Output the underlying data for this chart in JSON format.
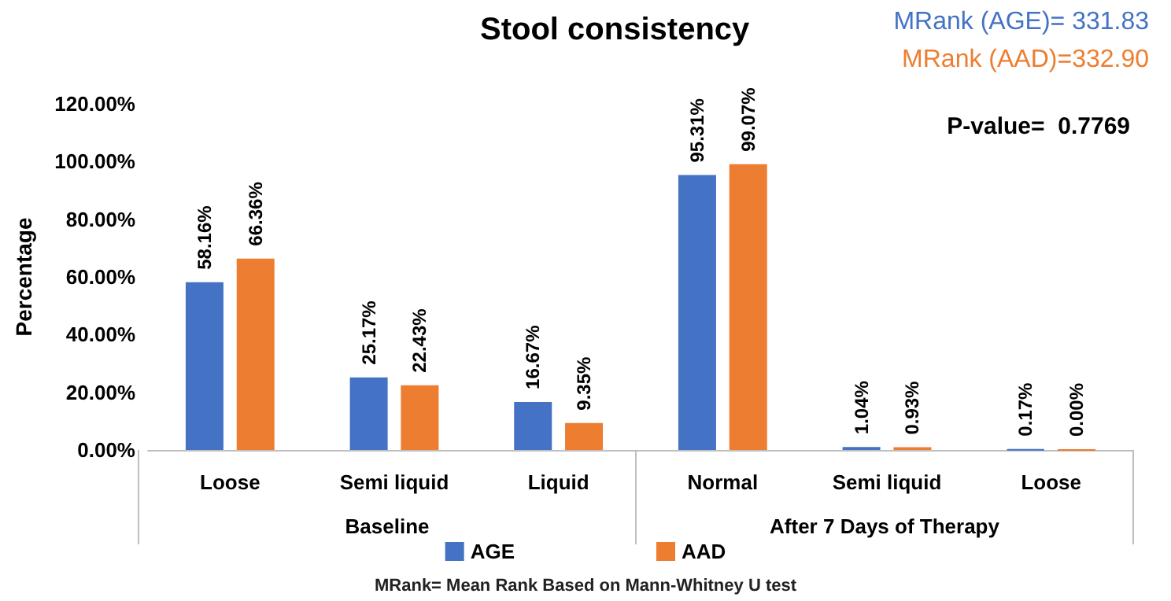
{
  "chart_data": {
    "type": "bar",
    "title": "Stool consistency",
    "ylabel": "Percentage",
    "categories": [
      "Loose",
      "Semi liquid",
      "Liquid",
      "Normal",
      "Semi liquid",
      "Loose"
    ],
    "series": [
      {
        "name": "AGE",
        "color": "#4472c4",
        "values": [
          58.16,
          25.17,
          16.67,
          95.31,
          1.04,
          0.17
        ],
        "value_labels": [
          "58.16%",
          "25.17%",
          "16.67%",
          "95.31%",
          "1.04%",
          "0.17%"
        ]
      },
      {
        "name": "AAD",
        "color": "#ed7d31",
        "values": [
          66.36,
          22.43,
          9.35,
          99.07,
          0.93,
          0.0
        ],
        "value_labels": [
          "66.36%",
          "22.43%",
          "9.35%",
          "99.07%",
          "0.93%",
          "0.00%"
        ]
      }
    ],
    "ylim": [
      0,
      120
    ],
    "yticks": [
      {
        "value": 0,
        "label": "0.00%"
      },
      {
        "value": 20,
        "label": "20.00%"
      },
      {
        "value": 40,
        "label": "40.00%"
      },
      {
        "value": 60,
        "label": "60.00%"
      },
      {
        "value": 80,
        "label": "80.00%"
      },
      {
        "value": 100,
        "label": "100.00%"
      },
      {
        "value": 120,
        "label": "120.00%"
      }
    ],
    "annotations": [
      "MRank (AGE)= 331.83",
      "MRank (AAD)=332.90",
      "P-value=  0.7769",
      "Baseline",
      "After 7 Days of Therapy",
      "MRank= Mean Rank Based on Mann-Whitney U test"
    ],
    "grid": false,
    "legend": "bottom"
  }
}
